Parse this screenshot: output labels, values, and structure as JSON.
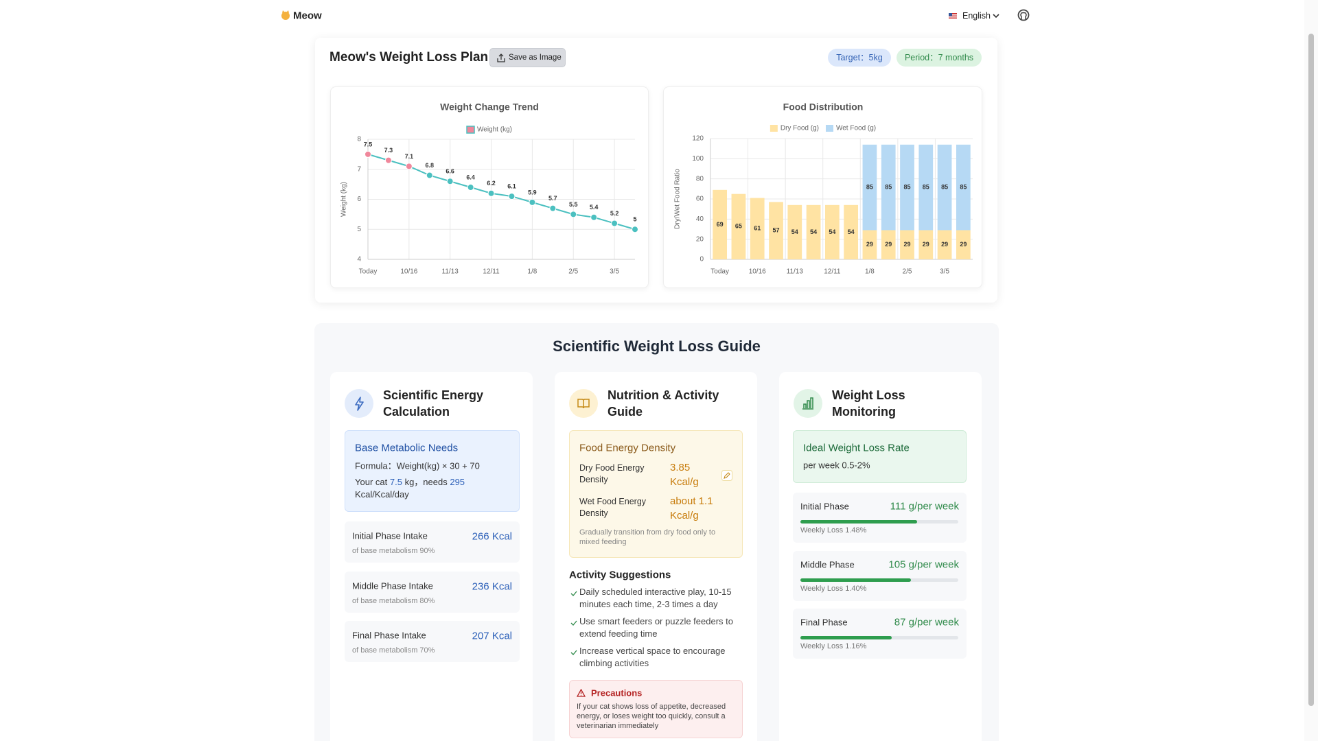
{
  "header": {
    "brand": "Meow",
    "language": "English"
  },
  "plan": {
    "title": "Meow's Weight Loss Plan",
    "save_button": "Save as Image",
    "target": "Target：5kg",
    "period": "Period：7 months"
  },
  "chart_data": [
    {
      "type": "line",
      "title": "Weight Change Trend",
      "y_label": "Weight (kg)",
      "categories": [
        "Today",
        null,
        "10/16",
        null,
        "11/13",
        null,
        "12/11",
        null,
        "1/8",
        null,
        "2/5",
        null,
        "3/5",
        null
      ],
      "series": [
        {
          "name": "Weight (kg)",
          "color": "#4bc0c0",
          "values": [
            7.5,
            7.3,
            7.1,
            6.8,
            6.6,
            6.4,
            6.2,
            6.1,
            5.9,
            5.7,
            5.5,
            5.4,
            5.2,
            5
          ]
        }
      ],
      "point_colors": [
        "#f0879b",
        "#f0879b",
        "#f0879b",
        "#4bc0c0",
        "#4bc0c0",
        "#4bc0c0",
        "#4bc0c0",
        "#4bc0c0",
        "#4bc0c0",
        "#4bc0c0",
        "#4bc0c0",
        "#4bc0c0",
        "#4bc0c0",
        "#4bc0c0"
      ],
      "ylim": [
        4,
        8
      ],
      "yticks": [
        4,
        5,
        6,
        7,
        8
      ],
      "grid": true,
      "legend": "top"
    },
    {
      "type": "bar",
      "stacked": true,
      "title": "Food Distribution",
      "y_label": "Dry/Wet Food Ratio",
      "categories": [
        "Today",
        null,
        "10/16",
        null,
        "11/13",
        null,
        "12/11",
        null,
        "1/8",
        null,
        "2/5",
        null,
        "3/5",
        null
      ],
      "series": [
        {
          "name": "Dry Food (g)",
          "color": "#ffe3a3",
          "values": [
            69,
            65,
            61,
            57,
            54,
            54,
            54,
            54,
            29,
            29,
            29,
            29,
            29,
            29
          ]
        },
        {
          "name": "Wet Food (g)",
          "color": "#b6d9f4",
          "values": [
            null,
            null,
            null,
            null,
            null,
            null,
            null,
            null,
            85,
            85,
            85,
            85,
            85,
            85
          ]
        }
      ],
      "ylim": [
        0,
        120
      ],
      "yticks": [
        0,
        20,
        40,
        60,
        80,
        100,
        120
      ],
      "grid": true,
      "legend": "top"
    }
  ],
  "guide": {
    "title": "Scientific Weight Loss Guide",
    "energy": {
      "title": "Scientific Energy Calculation",
      "base": {
        "title": "Base Metabolic Needs",
        "formula": "Formula：Weight(kg) × 30 + 70",
        "cat_prefix": "Your cat",
        "weight": 7.5,
        "weight_unit": "kg，needs",
        "needs": 295,
        "needs_unit": "Kcal/Kcal/day"
      },
      "phases": [
        {
          "name": "Initial Phase Intake",
          "value": "266 Kcal",
          "note": "of base metabolism 90%"
        },
        {
          "name": "Middle Phase Intake",
          "value": "236 Kcal",
          "note": "of base metabolism 80%"
        },
        {
          "name": "Final Phase Intake",
          "value": "207 Kcal",
          "note": "of base metabolism 70%"
        }
      ]
    },
    "nutrition": {
      "title": "Nutrition & Activity Guide",
      "density": {
        "title": "Food Energy Density",
        "dry_label": "Dry Food Energy Density",
        "dry_value": "3.85 Kcal/g",
        "wet_label": "Wet Food Energy Density",
        "wet_value": "about 1.1 Kcal/g",
        "note": "Gradually transition from dry food only to mixed feeding"
      },
      "activity_title": "Activity Suggestions",
      "activities": [
        "Daily scheduled interactive play, 10-15 minutes each time, 2-3 times a day",
        "Use smart feeders or puzzle feeders to extend feeding time",
        "Increase vertical space to encourage climbing activities"
      ],
      "precautions": {
        "title": "Precautions",
        "text": "If your cat shows loss of appetite, decreased energy, or loses weight too quickly, consult a veterinarian immediately"
      }
    },
    "monitoring": {
      "title": "Weight Loss Monitoring",
      "ideal": {
        "title": "Ideal Weight Loss Rate",
        "text": "per week 0.5-2%"
      },
      "phases": [
        {
          "name": "Initial Phase",
          "value": "111 g/per week",
          "rate": "Weekly Loss 1.48%",
          "progress": 74
        },
        {
          "name": "Middle Phase",
          "value": "105 g/per week",
          "rate": "Weekly Loss 1.40%",
          "progress": 70
        },
        {
          "name": "Final Phase",
          "value": "87 g/per week",
          "rate": "Weekly Loss 1.16%",
          "progress": 58
        }
      ]
    }
  }
}
